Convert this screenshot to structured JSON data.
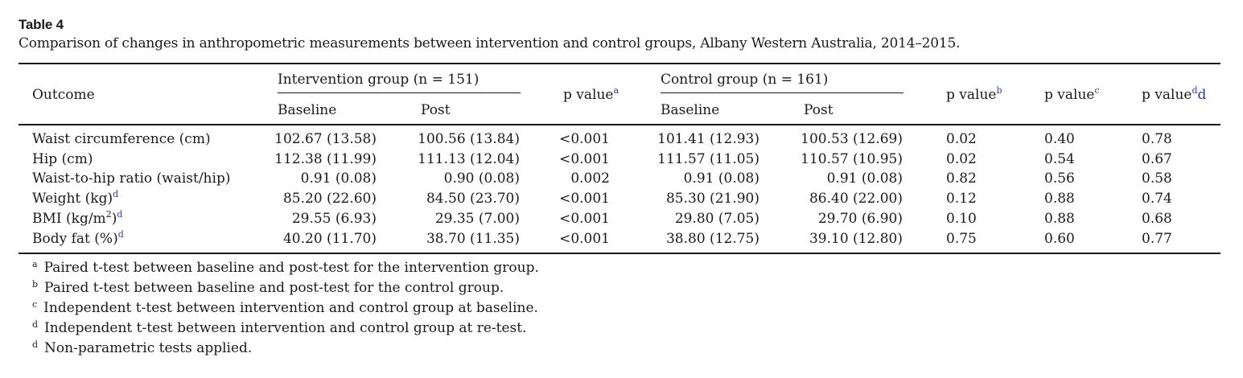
{
  "table": {
    "label": "Table 4",
    "caption": "Comparison of changes in anthropometric measurements between intervention and control groups, Albany Western Australia, 2014–2015.",
    "headers": {
      "outcome": "Outcome",
      "intervention_group": "Intervention group (n = 151)",
      "control_group": "Control group (n = 161)",
      "baseline": "Baseline",
      "post": "Post",
      "p_value": "p value",
      "p_value_a_marker": "a",
      "p_value_b_marker": "b",
      "p_value_c_marker": "c",
      "p_value_d_marker": "d",
      "p_value_d_extra": "d"
    },
    "rows": [
      {
        "outcome": "Waist circumference (cm)",
        "marker": "",
        "int_baseline": "102.67 (13.58)",
        "int_post": "100.56 (13.84)",
        "p_a": "<0.001",
        "ctl_baseline": "101.41 (12.93)",
        "ctl_post": "100.53 (12.69)",
        "p_b": "0.02",
        "p_c": "0.40",
        "p_d": "0.78"
      },
      {
        "outcome": "Hip (cm)",
        "marker": "",
        "int_baseline": "112.38 (11.99)",
        "int_post": "111.13 (12.04)",
        "p_a": "<0.001",
        "ctl_baseline": "111.57 (11.05)",
        "ctl_post": "110.57 (10.95)",
        "p_b": "0.02",
        "p_c": "0.54",
        "p_d": "0.67"
      },
      {
        "outcome": "Waist-to-hip ratio (waist/hip)",
        "marker": "",
        "int_baseline": "0.91 (0.08)",
        "int_post": "0.90 (0.08)",
        "p_a": "0.002",
        "ctl_baseline": "0.91 (0.08)",
        "ctl_post": "0.91 (0.08)",
        "p_b": "0.82",
        "p_c": "0.56",
        "p_d": "0.58"
      },
      {
        "outcome": "Weight (kg)",
        "marker": "d",
        "int_baseline": "85.20 (22.60)",
        "int_post": "84.50 (23.70)",
        "p_a": "<0.001",
        "ctl_baseline": "85.30 (21.90)",
        "ctl_post": "86.40 (22.00)",
        "p_b": "0.12",
        "p_c": "0.88",
        "p_d": "0.74"
      },
      {
        "outcome": "BMI (kg/m",
        "outcome_sup": "2",
        "outcome_tail": ")",
        "marker": "d",
        "int_baseline": "29.55 (6.93)",
        "int_post": "29.35 (7.00)",
        "p_a": "<0.001",
        "ctl_baseline": "29.80 (7.05)",
        "ctl_post": "29.70 (6.90)",
        "p_b": "0.10",
        "p_c": "0.88",
        "p_d": "0.68"
      },
      {
        "outcome": "Body fat (%)",
        "marker": "d",
        "int_baseline": "40.20 (11.70)",
        "int_post": "38.70 (11.35)",
        "p_a": "<0.001",
        "ctl_baseline": "38.80 (12.75)",
        "ctl_post": "39.10 (12.80)",
        "p_b": "0.75",
        "p_c": "0.60",
        "p_d": "0.77"
      }
    ],
    "footnotes": [
      {
        "marker": "a",
        "text": "Paired t-test between baseline and post-test for the intervention group."
      },
      {
        "marker": "b",
        "text": "Paired t-test between baseline and post-test for the control group."
      },
      {
        "marker": "c",
        "text": "Independent t-test between intervention and control group at baseline."
      },
      {
        "marker": "d",
        "text": "Independent t-test between intervention and control group at re-test."
      },
      {
        "marker": "d",
        "text": "Non-parametric tests applied."
      }
    ]
  }
}
